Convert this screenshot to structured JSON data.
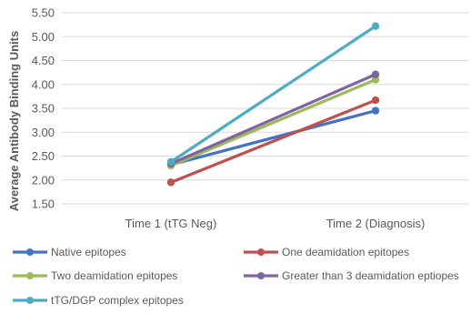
{
  "chart_data": {
    "type": "line",
    "categories": [
      "Time 1 (tTG Neg)",
      "Time 2 (Diagnosis)"
    ],
    "ylabel": "Average Antibody Binding Units",
    "xlabel": "",
    "ylim": [
      1.5,
      5.5
    ],
    "yticks": [
      "1.50",
      "2.00",
      "2.50",
      "3.00",
      "3.50",
      "4.00",
      "4.50",
      "5.00",
      "5.50"
    ],
    "grid": true,
    "legend_position": "bottom",
    "series": [
      {
        "name": "Native epitopes",
        "values": [
          2.32,
          3.45
        ],
        "color": "#4472c4"
      },
      {
        "name": "One deamidation epitopes",
        "values": [
          1.95,
          3.67
        ],
        "color": "#c0504d"
      },
      {
        "name": "Two deamidation epitopes",
        "values": [
          2.3,
          4.1
        ],
        "color": "#9bbb59"
      },
      {
        "name": "Greater than 3 deamidation eptiopes",
        "values": [
          2.34,
          4.21
        ],
        "color": "#8064a2"
      },
      {
        "name": "tTG/DGP complex epitopes",
        "values": [
          2.38,
          5.22
        ],
        "color": "#4bacc6"
      }
    ]
  }
}
